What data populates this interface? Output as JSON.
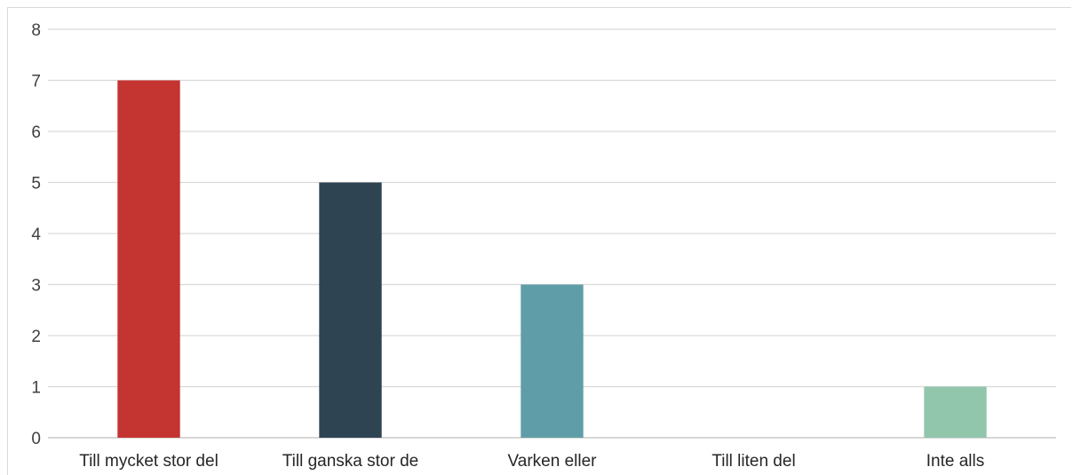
{
  "chart_data": {
    "type": "bar",
    "categories": [
      "Till mycket stor del",
      "Till ganska stor de",
      "Varken eller",
      "Till liten del",
      "Inte alls"
    ],
    "values": [
      7,
      5,
      3,
      0,
      1
    ],
    "colors": [
      "#c43431",
      "#2e4453",
      "#5f9ea8",
      "#5f9ea8",
      "#91c6ad"
    ],
    "y_ticks": [
      "0",
      "1",
      "2",
      "3",
      "4",
      "5",
      "6",
      "7",
      "8"
    ],
    "ylim": [
      0,
      8
    ],
    "grid": true,
    "title": "",
    "xlabel": "",
    "ylabel": ""
  }
}
